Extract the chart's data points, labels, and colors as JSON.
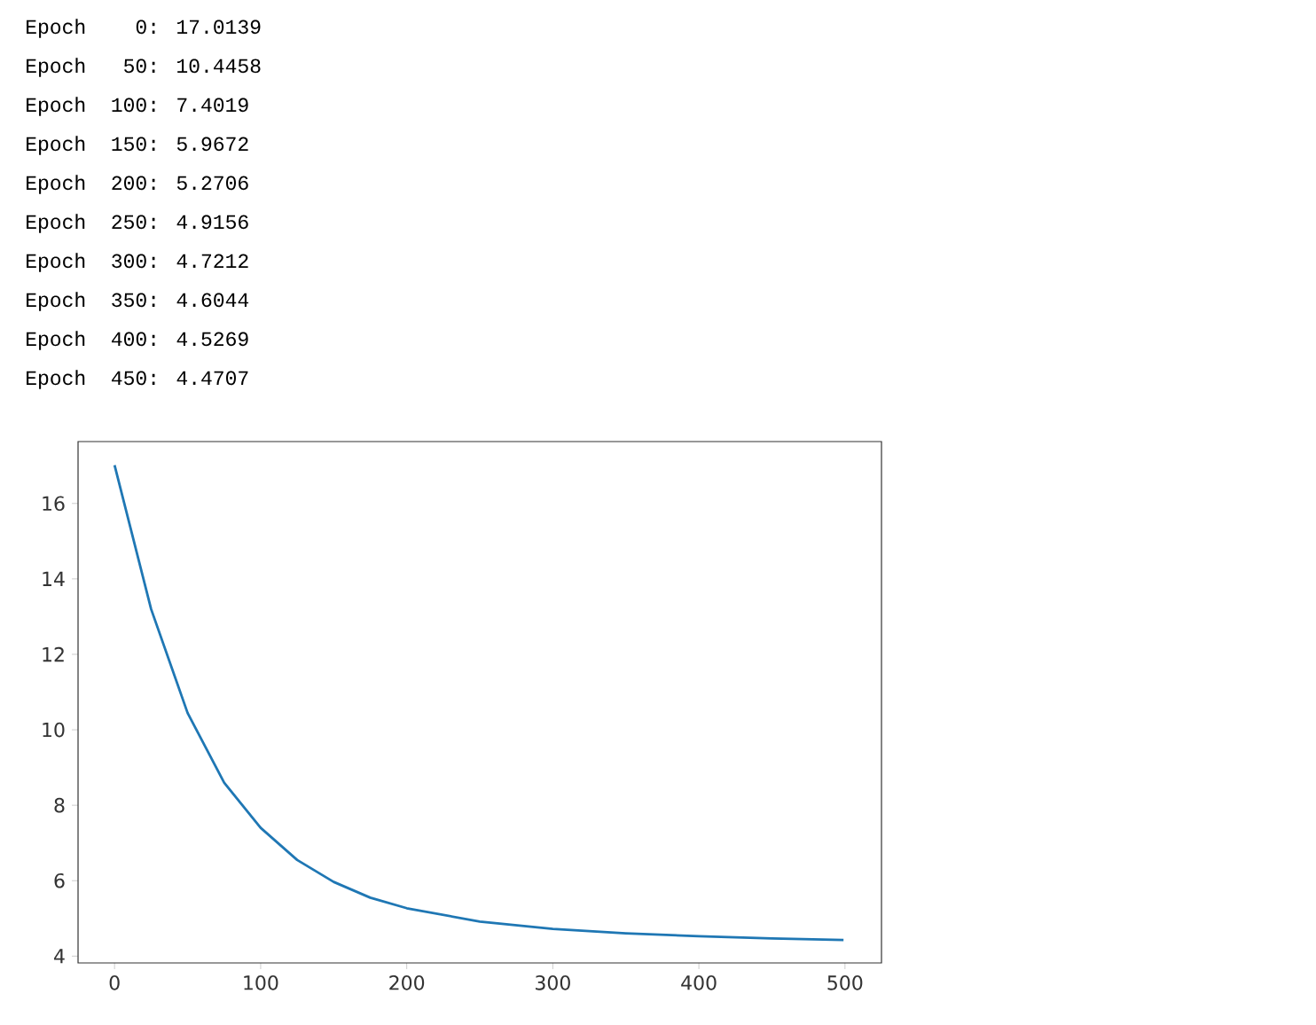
{
  "chart_data": {
    "type": "line",
    "annotations": [
      "Epoch    0: 17.0139",
      "Epoch   50: 10.4458",
      "Epoch  100: 7.4019",
      "Epoch  150: 5.9672",
      "Epoch  200: 5.2706",
      "Epoch  250: 4.9156",
      "Epoch  300: 4.7212",
      "Epoch  350: 4.6044",
      "Epoch  400: 4.5269",
      "Epoch  450: 4.4707"
    ],
    "x": [
      0,
      25,
      50,
      75,
      100,
      125,
      150,
      175,
      200,
      250,
      300,
      350,
      400,
      450,
      499
    ],
    "values": [
      17.0139,
      13.2,
      10.4458,
      8.6,
      7.4019,
      6.55,
      5.9672,
      5.55,
      5.2706,
      4.9156,
      4.7212,
      4.6044,
      4.5269,
      4.4707,
      4.43
    ],
    "color": "#1f77b4",
    "xlim": [
      -25,
      525
    ],
    "ylim": [
      3.82,
      17.64
    ],
    "xticks": [
      0,
      100,
      200,
      300,
      400,
      500
    ],
    "yticks": [
      4,
      6,
      8,
      10,
      12,
      14,
      16
    ]
  }
}
